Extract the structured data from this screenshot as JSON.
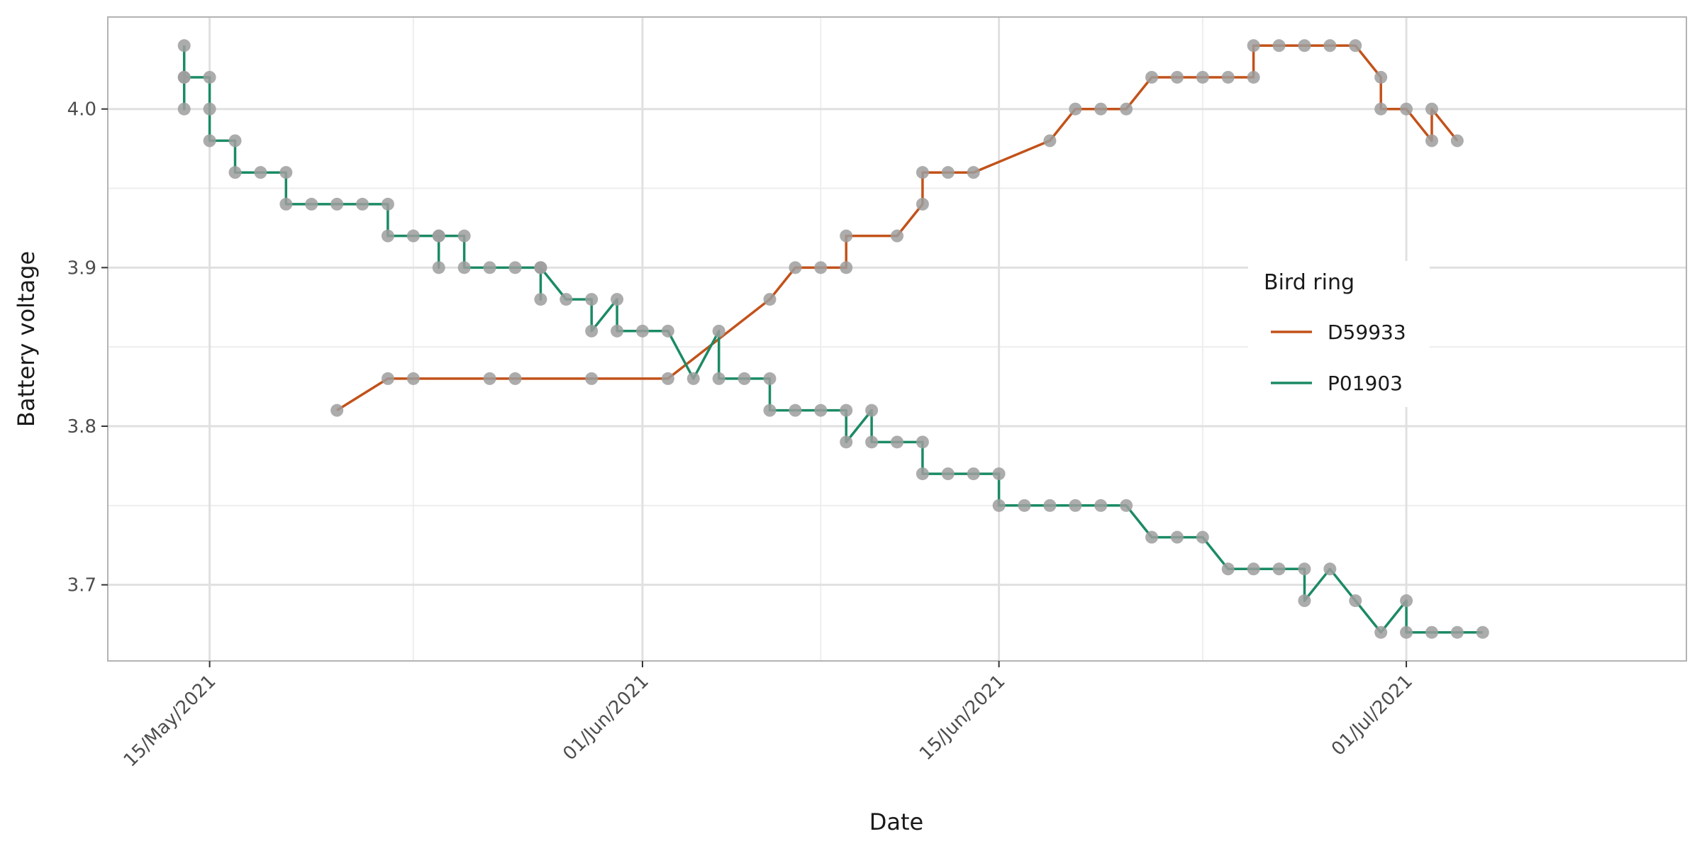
{
  "chart_data": {
    "type": "line",
    "title": "",
    "xlabel": "Date",
    "ylabel": "Battery voltage",
    "x_axis": {
      "type": "date",
      "range": [
        "2021-05-11",
        "2021-07-12"
      ],
      "major_ticks": [
        {
          "value": "2021-05-15",
          "label": "15/May/2021"
        },
        {
          "value": "2021-06-01",
          "label": "01/Jun/2021"
        },
        {
          "value": "2021-06-15",
          "label": "15/Jun/2021"
        },
        {
          "value": "2021-07-01",
          "label": "01/Jul/2021"
        }
      ],
      "minor_ticks": [
        "2021-05-23",
        "2021-06-08",
        "2021-06-23"
      ]
    },
    "y_axis": {
      "range": [
        3.652,
        4.058
      ],
      "major_ticks": [
        {
          "value": 3.7,
          "label": "3.7"
        },
        {
          "value": 3.8,
          "label": "3.8"
        },
        {
          "value": 3.9,
          "label": "3.9"
        },
        {
          "value": 4.0,
          "label": "4.0"
        }
      ],
      "minor_ticks": [
        3.75,
        3.85,
        3.95
      ]
    },
    "grid": true,
    "legend": {
      "title": "Bird ring",
      "position": "right"
    },
    "point_color": "#9e9e9e",
    "series": [
      {
        "name": "D59933",
        "color": "#c2521a",
        "points": [
          [
            "2021-05-20",
            3.81
          ],
          [
            "2021-05-22",
            3.83
          ],
          [
            "2021-05-23",
            3.83
          ],
          [
            "2021-05-26",
            3.83
          ],
          [
            "2021-05-27",
            3.83
          ],
          [
            "2021-05-30",
            3.83
          ],
          [
            "2021-06-02",
            3.83
          ],
          [
            "2021-06-06",
            3.88
          ],
          [
            "2021-06-07",
            3.9
          ],
          [
            "2021-06-08",
            3.9
          ],
          [
            "2021-06-09",
            3.9
          ],
          [
            "2021-06-09",
            3.92
          ],
          [
            "2021-06-11",
            3.92
          ],
          [
            "2021-06-12",
            3.94
          ],
          [
            "2021-06-12",
            3.96
          ],
          [
            "2021-06-13",
            3.96
          ],
          [
            "2021-06-14",
            3.96
          ],
          [
            "2021-06-17",
            3.98
          ],
          [
            "2021-06-18",
            4.0
          ],
          [
            "2021-06-19",
            4.0
          ],
          [
            "2021-06-20",
            4.0
          ],
          [
            "2021-06-21",
            4.02
          ],
          [
            "2021-06-22",
            4.02
          ],
          [
            "2021-06-23",
            4.02
          ],
          [
            "2021-06-24",
            4.02
          ],
          [
            "2021-06-25",
            4.02
          ],
          [
            "2021-06-25",
            4.04
          ],
          [
            "2021-06-26",
            4.04
          ],
          [
            "2021-06-27",
            4.04
          ],
          [
            "2021-06-28",
            4.04
          ],
          [
            "2021-06-29",
            4.04
          ],
          [
            "2021-06-30",
            4.02
          ],
          [
            "2021-06-30",
            4.0
          ],
          [
            "2021-07-01",
            4.0
          ],
          [
            "2021-07-02",
            3.98
          ],
          [
            "2021-07-02",
            4.0
          ],
          [
            "2021-07-03",
            3.98
          ]
        ]
      },
      {
        "name": "P01903",
        "color": "#1b8a65",
        "points": [
          [
            "2021-05-14",
            4.04
          ],
          [
            "2021-05-14",
            4.02
          ],
          [
            "2021-05-14",
            4.0
          ],
          [
            "2021-05-14",
            4.02
          ],
          [
            "2021-05-15",
            4.02
          ],
          [
            "2021-05-15",
            4.0
          ],
          [
            "2021-05-15",
            3.98
          ],
          [
            "2021-05-16",
            3.98
          ],
          [
            "2021-05-16",
            3.96
          ],
          [
            "2021-05-17",
            3.96
          ],
          [
            "2021-05-18",
            3.96
          ],
          [
            "2021-05-18",
            3.94
          ],
          [
            "2021-05-19",
            3.94
          ],
          [
            "2021-05-20",
            3.94
          ],
          [
            "2021-05-21",
            3.94
          ],
          [
            "2021-05-22",
            3.94
          ],
          [
            "2021-05-22",
            3.92
          ],
          [
            "2021-05-23",
            3.92
          ],
          [
            "2021-05-24",
            3.92
          ],
          [
            "2021-05-24",
            3.9
          ],
          [
            "2021-05-24",
            3.92
          ],
          [
            "2021-05-25",
            3.92
          ],
          [
            "2021-05-25",
            3.9
          ],
          [
            "2021-05-26",
            3.9
          ],
          [
            "2021-05-27",
            3.9
          ],
          [
            "2021-05-28",
            3.9
          ],
          [
            "2021-05-28",
            3.88
          ],
          [
            "2021-05-28",
            3.9
          ],
          [
            "2021-05-29",
            3.88
          ],
          [
            "2021-05-30",
            3.88
          ],
          [
            "2021-05-30",
            3.86
          ],
          [
            "2021-05-31",
            3.88
          ],
          [
            "2021-05-31",
            3.86
          ],
          [
            "2021-06-01",
            3.86
          ],
          [
            "2021-06-02",
            3.86
          ],
          [
            "2021-06-03",
            3.83
          ],
          [
            "2021-06-04",
            3.86
          ],
          [
            "2021-06-04",
            3.83
          ],
          [
            "2021-06-05",
            3.83
          ],
          [
            "2021-06-06",
            3.83
          ],
          [
            "2021-06-06",
            3.81
          ],
          [
            "2021-06-07",
            3.81
          ],
          [
            "2021-06-08",
            3.81
          ],
          [
            "2021-06-09",
            3.81
          ],
          [
            "2021-06-09",
            3.79
          ],
          [
            "2021-06-10",
            3.81
          ],
          [
            "2021-06-10",
            3.79
          ],
          [
            "2021-06-11",
            3.79
          ],
          [
            "2021-06-12",
            3.79
          ],
          [
            "2021-06-12",
            3.77
          ],
          [
            "2021-06-13",
            3.77
          ],
          [
            "2021-06-14",
            3.77
          ],
          [
            "2021-06-15",
            3.77
          ],
          [
            "2021-06-15",
            3.75
          ],
          [
            "2021-06-16",
            3.75
          ],
          [
            "2021-06-17",
            3.75
          ],
          [
            "2021-06-18",
            3.75
          ],
          [
            "2021-06-19",
            3.75
          ],
          [
            "2021-06-20",
            3.75
          ],
          [
            "2021-06-21",
            3.73
          ],
          [
            "2021-06-22",
            3.73
          ],
          [
            "2021-06-23",
            3.73
          ],
          [
            "2021-06-24",
            3.71
          ],
          [
            "2021-06-25",
            3.71
          ],
          [
            "2021-06-26",
            3.71
          ],
          [
            "2021-06-27",
            3.71
          ],
          [
            "2021-06-27",
            3.69
          ],
          [
            "2021-06-28",
            3.71
          ],
          [
            "2021-06-29",
            3.69
          ],
          [
            "2021-06-30",
            3.67
          ],
          [
            "2021-07-01",
            3.69
          ],
          [
            "2021-07-01",
            3.67
          ],
          [
            "2021-07-02",
            3.67
          ],
          [
            "2021-07-03",
            3.67
          ],
          [
            "2021-07-04",
            3.67
          ]
        ]
      }
    ]
  }
}
